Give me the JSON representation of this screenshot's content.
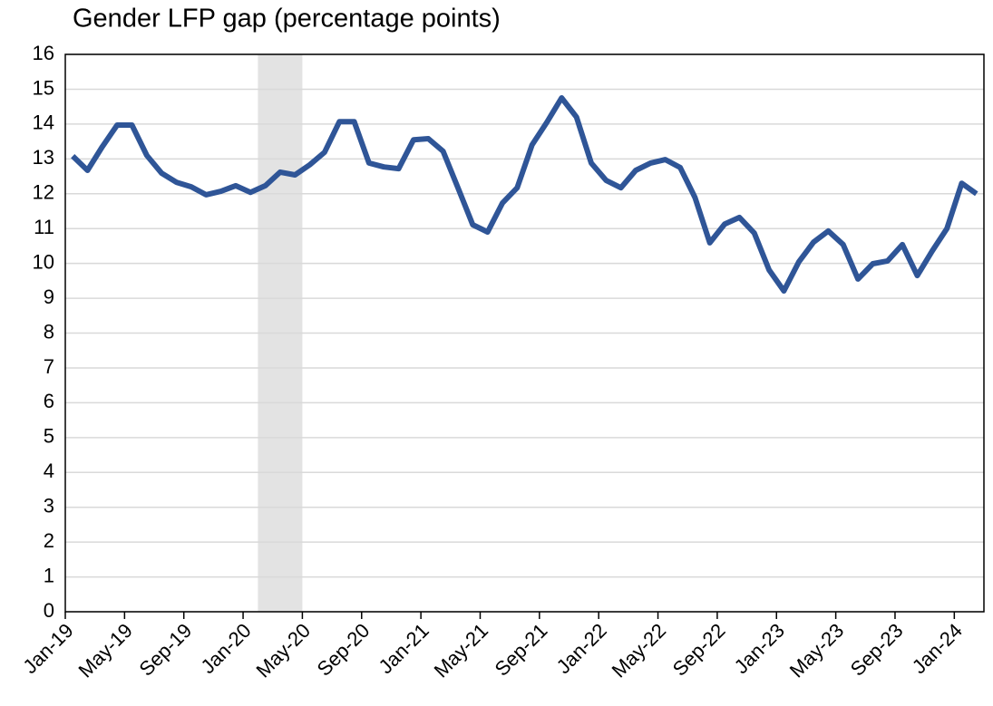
{
  "chart_data": {
    "type": "line",
    "title": "Gender LFP gap (percentage points)",
    "categories": [
      "Jan-19",
      null,
      null,
      null,
      "May-19",
      null,
      null,
      null,
      "Sep-19",
      null,
      null,
      null,
      "Jan-20",
      null,
      null,
      null,
      "May-20",
      null,
      null,
      null,
      "Sep-20",
      null,
      null,
      null,
      "Jan-21",
      null,
      null,
      null,
      "May-21",
      null,
      null,
      null,
      "Sep-21",
      null,
      null,
      null,
      "Jan-22",
      null,
      null,
      null,
      "May-22",
      null,
      null,
      null,
      "Sep-22",
      null,
      null,
      null,
      "Jan-23",
      null,
      null,
      null,
      "May-23",
      null,
      null,
      null,
      "Sep-23",
      null,
      null,
      null,
      "Jan-24",
      null
    ],
    "values": [
      13.08,
      12.67,
      13.35,
      13.97,
      13.97,
      13.1,
      12.59,
      12.33,
      12.2,
      11.97,
      12.07,
      12.23,
      12.04,
      12.23,
      12.62,
      12.54,
      12.83,
      13.19,
      14.07,
      14.07,
      12.88,
      12.77,
      12.72,
      13.55,
      13.58,
      13.22,
      12.17,
      11.11,
      10.9,
      11.73,
      12.17,
      13.4,
      14.05,
      14.75,
      14.2,
      12.88,
      12.38,
      12.17,
      12.67,
      12.88,
      12.98,
      12.75,
      11.89,
      10.59,
      11.13,
      11.32,
      10.87,
      9.81,
      9.21,
      10.04,
      10.61,
      10.93,
      10.54,
      9.55,
      9.99,
      10.07,
      10.54,
      9.65,
      10.35,
      11.0,
      12.3,
      12.0
    ],
    "color": "#2f5597",
    "shade_color": "#e3e3e3",
    "shade_range": [
      13,
      16
    ],
    "ylim": [
      0,
      16
    ],
    "yticks": [
      0,
      1,
      2,
      3,
      4,
      5,
      6,
      7,
      8,
      9,
      10,
      11,
      12,
      13,
      14,
      15,
      16
    ],
    "grid": true
  }
}
